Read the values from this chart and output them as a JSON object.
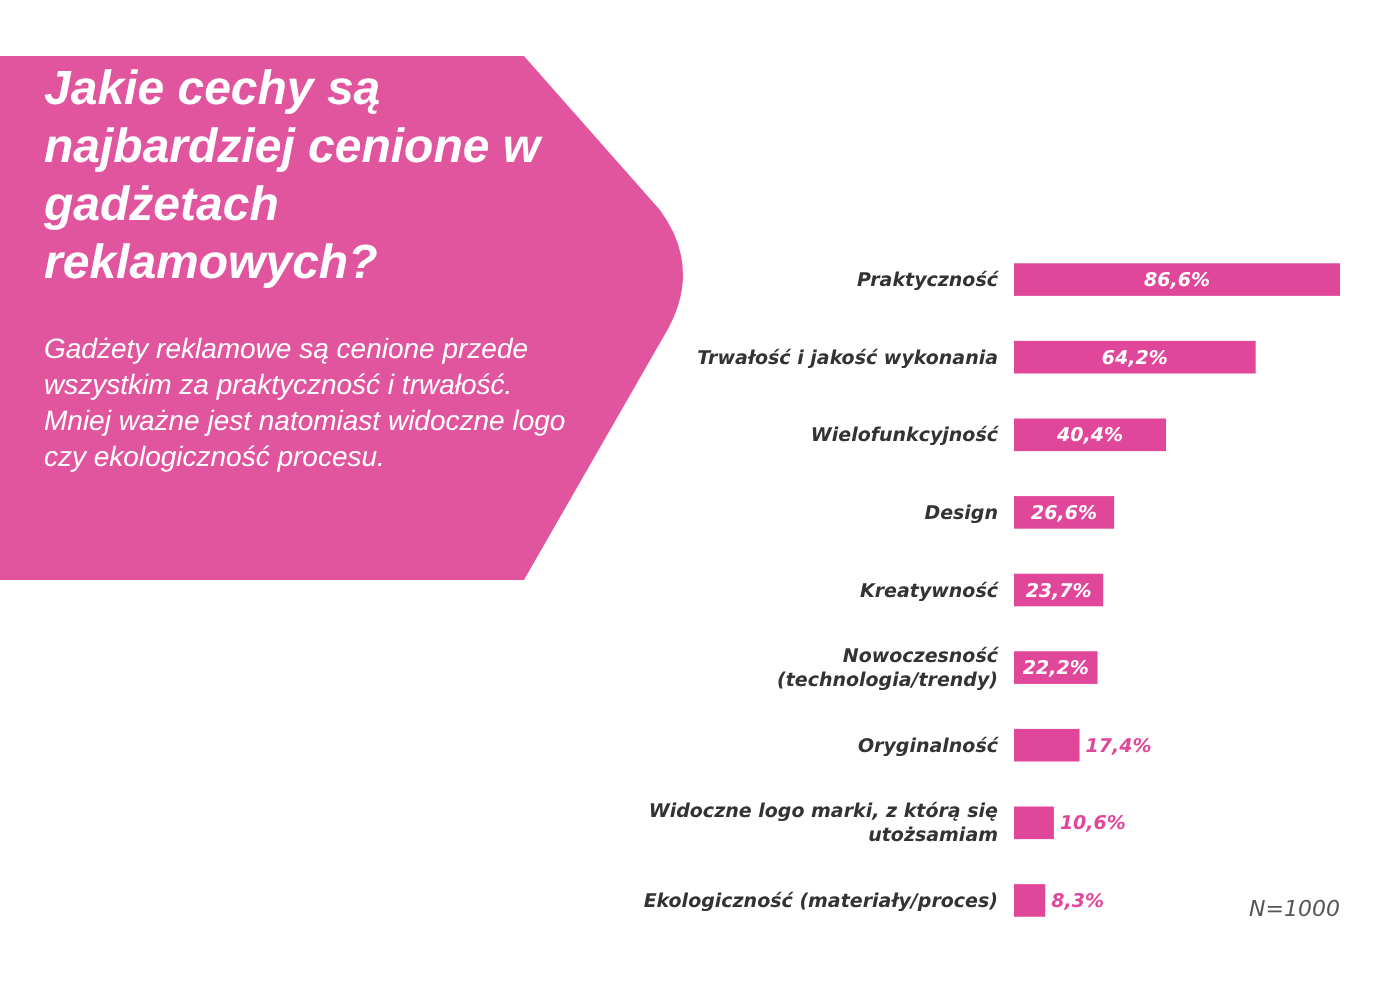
{
  "chart_data": {
    "type": "bar",
    "orientation": "horizontal",
    "title": "Jakie cechy są najbardziej cenione w gadżetach reklamowych?",
    "subtitle": "Gadżety reklamowe są cenione przede wszystkim za praktyczność i trwałość. Mniej ważne jest natomiast widoczne logo czy ekologiczność procesu.",
    "categories": [
      "Praktyczność",
      "Trwałość i jakość wykonania",
      "Wielofunkcyjność",
      "Design",
      "Kreatywność",
      "Nowoczesność (technologia/trendy)",
      "Oryginalność",
      "Widoczne logo marki, z którą się utożsamiam",
      "Ekologiczność (materiały/proces)"
    ],
    "values": [
      86.6,
      64.2,
      40.4,
      26.6,
      23.7,
      22.2,
      17.4,
      10.6,
      8.3
    ],
    "value_labels": [
      "86,6%",
      "64,2%",
      "40,4%",
      "26,6%",
      "23,7%",
      "22,2%",
      "17,4%",
      "10,6%",
      "8,3%"
    ],
    "color": "#e0469a",
    "annotations": [
      "N=1000"
    ]
  }
}
